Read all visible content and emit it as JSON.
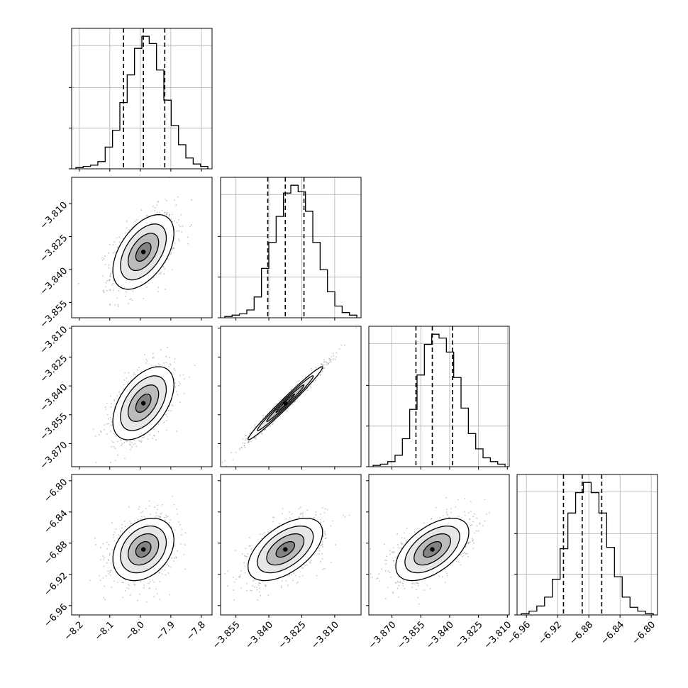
{
  "chart_data": {
    "type": "scatter",
    "title": "",
    "plot": "corner",
    "parameters": [
      {
        "label": "",
        "range": [
          -8.225,
          -7.765
        ],
        "ticks": [
          "-8.2",
          "-8.1",
          "-8.0",
          "-7.9",
          "-7.8"
        ],
        "quantiles": [
          -8.055,
          -7.99,
          -7.92
        ],
        "hist_bins": [
          1,
          2,
          3,
          6,
          18,
          32,
          55,
          78,
          100,
          110,
          104,
          82,
          57,
          36,
          20,
          9,
          4,
          2
        ]
      },
      {
        "label": "",
        "range": [
          -3.862,
          -3.798
        ],
        "ticks": [
          "-3.855",
          "-3.840",
          "-3.825",
          "-3.810"
        ],
        "quantiles": [
          -3.8405,
          -3.8325,
          -3.824
        ],
        "hist_bins": [
          1,
          2,
          3,
          6,
          16,
          38,
          58,
          78,
          96,
          102,
          97,
          82,
          58,
          37,
          20,
          9,
          4,
          2
        ]
      },
      {
        "label": "",
        "range": [
          -3.882,
          -3.809
        ],
        "ticks": [
          "-3.870",
          "-3.855",
          "-3.840",
          "-3.825",
          "-3.810"
        ],
        "quantiles": [
          -3.8575,
          -3.849,
          -3.8385
        ],
        "hist_bins": [
          1,
          2,
          4,
          9,
          22,
          45,
          72,
          96,
          104,
          101,
          90,
          70,
          46,
          26,
          14,
          7,
          4,
          2
        ]
      },
      {
        "label": "",
        "range": [
          -6.972,
          -6.792
        ],
        "ticks": [
          "-6.96",
          "-6.92",
          "-6.88",
          "-6.84",
          "-6.80"
        ],
        "quantiles": [
          -6.9125,
          -6.8885,
          -6.8635
        ],
        "hist_bins": [
          1,
          3,
          7,
          14,
          28,
          52,
          80,
          96,
          104,
          96,
          80,
          53,
          30,
          14,
          6,
          3,
          1
        ]
      }
    ],
    "pairs": [
      {
        "x": 0,
        "y": 1,
        "center": [
          -7.99,
          -3.832
        ],
        "sigma": [
          0.05,
          0.0085
        ],
        "rho": 0.5
      },
      {
        "x": 0,
        "y": 2,
        "center": [
          -7.99,
          -3.849
        ],
        "sigma": [
          0.05,
          0.0095
        ],
        "rho": 0.5
      },
      {
        "x": 1,
        "y": 2,
        "center": [
          -3.8325,
          -3.849
        ],
        "sigma": [
          0.0085,
          0.0095
        ],
        "rho": 0.985
      },
      {
        "x": 0,
        "y": 3,
        "center": [
          -7.99,
          -6.888
        ],
        "sigma": [
          0.05,
          0.02
        ],
        "rho": 0.3
      },
      {
        "x": 1,
        "y": 3,
        "center": [
          -3.8325,
          -6.888
        ],
        "sigma": [
          0.0085,
          0.02
        ],
        "rho": 0.55
      },
      {
        "x": 2,
        "y": 3,
        "center": [
          -3.849,
          -6.888
        ],
        "sigma": [
          0.0095,
          0.02
        ],
        "rho": 0.55
      }
    ],
    "contour_levels_sigma": [
      0.5,
      1.0,
      1.5,
      2.0
    ],
    "grid": true,
    "colors": {
      "line": "#000000",
      "grid": "#b0b0b0",
      "points": "#555555"
    }
  }
}
